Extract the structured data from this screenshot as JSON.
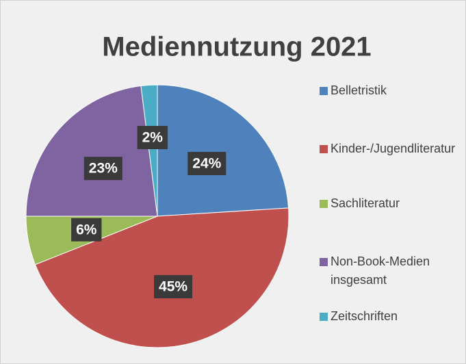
{
  "chart_data": {
    "type": "pie",
    "title": "Mediennutzung 2021",
    "categories": [
      "Belletristik",
      "Kinder-/Jugendliteratur",
      "Sachliteratur",
      "Non-Book-Medien insgesamt",
      "Zeitschriften"
    ],
    "values": [
      24,
      45,
      6,
      23,
      2
    ],
    "value_labels": [
      "24%",
      "45%",
      "6%",
      "23%",
      "2%"
    ],
    "colors": [
      "#4f81bd",
      "#c0504d",
      "#9bbb59",
      "#8064a2",
      "#4bacc6"
    ],
    "legend": "right"
  }
}
